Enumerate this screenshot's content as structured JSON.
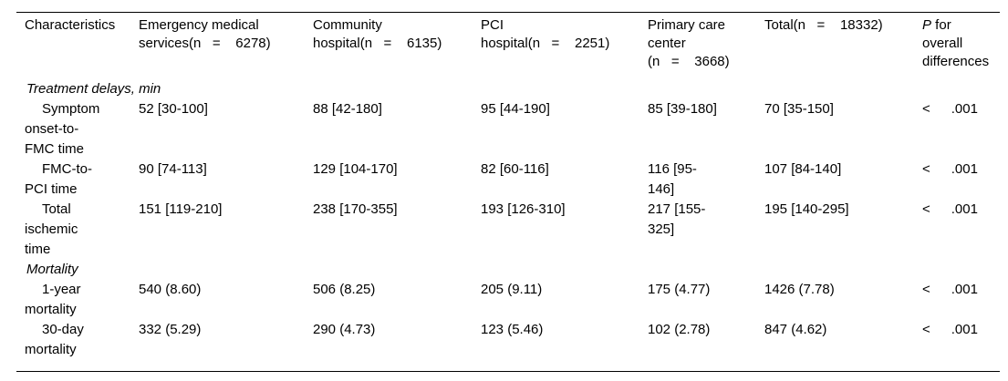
{
  "table": {
    "columns": [
      "Characteristics",
      "Emergency medical\nservices(n   =    6278)",
      "Community\nhospital(n   =    6135)",
      "PCI\nhospital(n   =    2251)",
      "Primary care\ncenter\n(n   =    3668)",
      "Total(n   =    18332)"
    ],
    "p_header": {
      "italic": "P",
      "rest": " for\noverall\ndifferences"
    },
    "sections": [
      {
        "title": "Treatment delays, min",
        "rows": [
          {
            "label": "Symptom\nonset-to-\nFMC time",
            "values": [
              "52 [30-100]",
              "88 [42-180]",
              "95 [44-190]",
              "85 [39-180]",
              "70 [35-150]"
            ],
            "p": {
              "lt": "<",
              "val": ".001"
            }
          },
          {
            "label": "FMC-to-\nPCI time",
            "values": [
              "90 [74-113]",
              "129 [104-170]",
              "82 [60-116]",
              "116 [95-\n146]",
              "107 [84-140]"
            ],
            "p": {
              "lt": "<",
              "val": ".001"
            }
          },
          {
            "label": "Total\nischemic\ntime",
            "values": [
              "151 [119-210]",
              "238 [170-355]",
              "193 [126-310]",
              "217 [155-\n325]",
              "195 [140-295]"
            ],
            "p": {
              "lt": "<",
              "val": ".001"
            }
          }
        ]
      },
      {
        "title": "Mortality",
        "rows": [
          {
            "label": "1-year\nmortality",
            "values": [
              "540 (8.60)",
              "506 (8.25)",
              "205 (9.11)",
              "175 (4.77)",
              "1426 (7.78)"
            ],
            "p": {
              "lt": "<",
              "val": ".001"
            }
          },
          {
            "label": "30-day\nmortality",
            "values": [
              "332 (5.29)",
              "290 (4.73)",
              "123 (5.46)",
              "102 (2.78)",
              "847 (4.62)"
            ],
            "p": {
              "lt": "<",
              "val": ".001"
            }
          }
        ]
      }
    ]
  }
}
